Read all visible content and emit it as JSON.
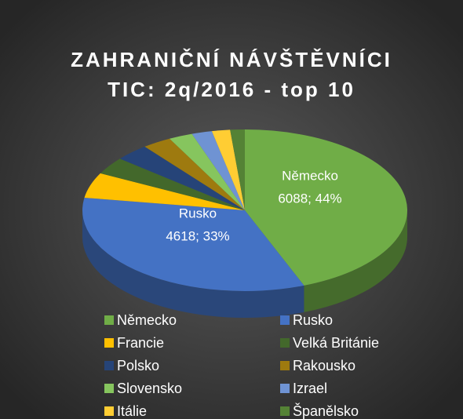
{
  "chart_data": {
    "type": "pie",
    "title": [
      "ZAHRANIČNÍ NÁVŠTĚVNÍCI",
      "TIC: 2q/2016 - top 10"
    ],
    "categories": [
      "Německo",
      "Rusko",
      "Francie",
      "Velká Británie",
      "Polsko",
      "Rakousko",
      "Slovensko",
      "Izrael",
      "Itálie",
      "Španělsko"
    ],
    "values": [
      6088,
      4618,
      700,
      480,
      470,
      400,
      330,
      280,
      250,
      200
    ],
    "value_labels": [
      "6088; 44%",
      "4618; 33%",
      null,
      null,
      null,
      null,
      null,
      null,
      null,
      null
    ],
    "colors": [
      "#70ad47",
      "#4472c4",
      "#ffc000",
      "#43682b",
      "#264478",
      "#9e7a0f",
      "#86c55e",
      "#6f93d3",
      "#ffcd33",
      "#548235"
    ],
    "legend": "bottom"
  }
}
